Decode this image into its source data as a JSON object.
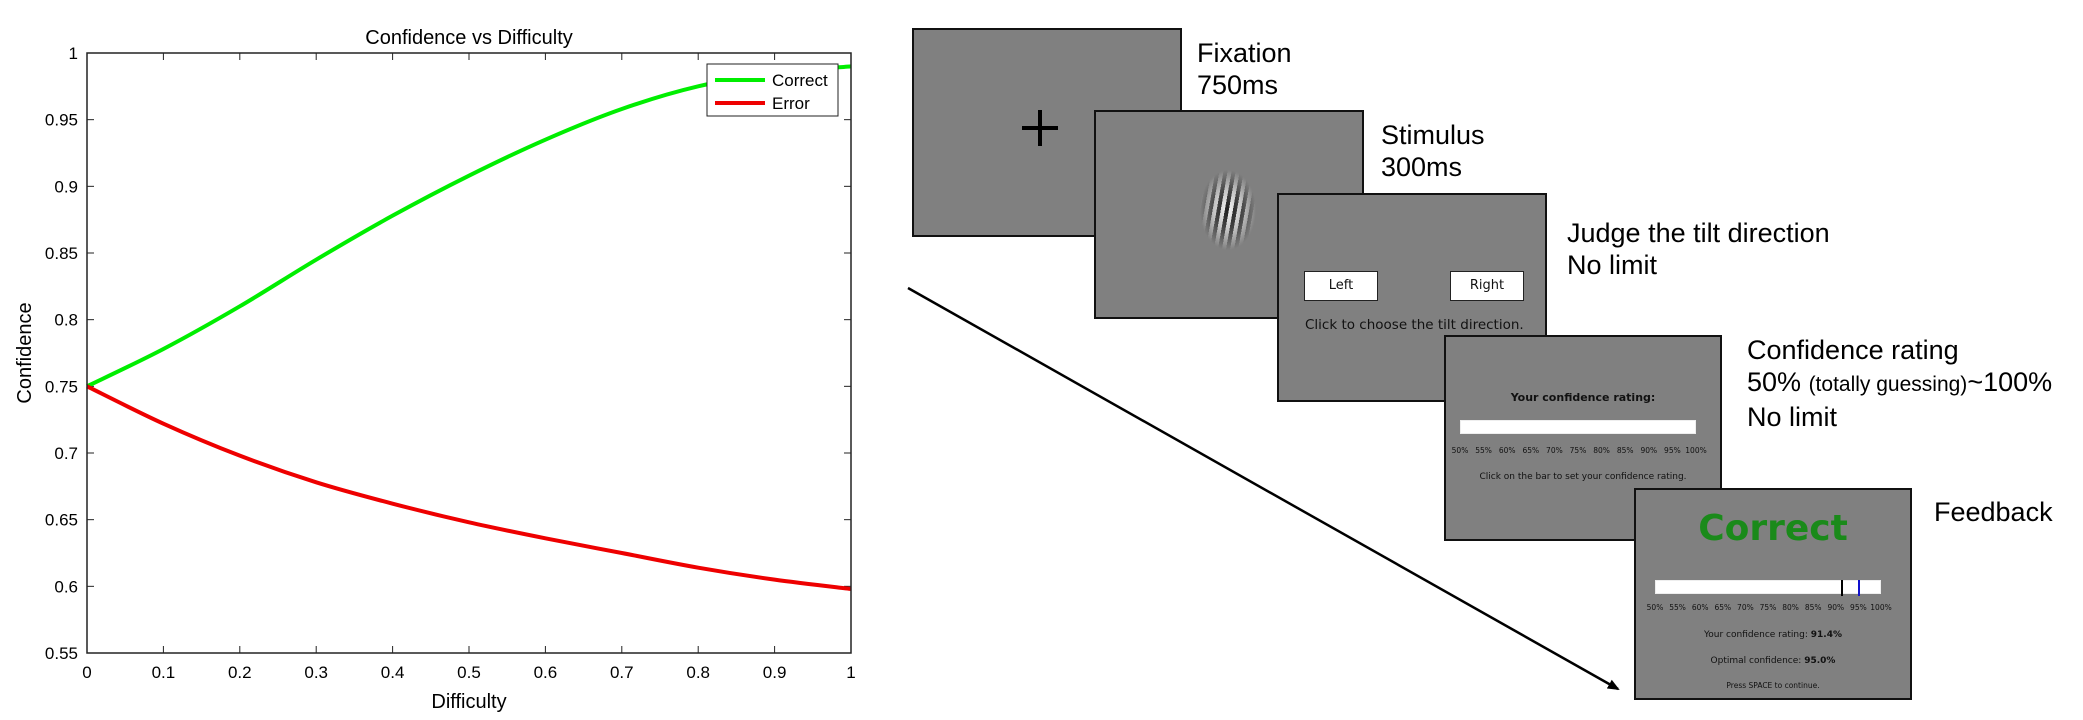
{
  "chart_data": {
    "type": "line",
    "title": "Confidence vs Difficulty",
    "xlabel": "Difficulty",
    "ylabel": "Confidence",
    "xlim": [
      0,
      1
    ],
    "ylim": [
      0.55,
      1
    ],
    "x_ticks": [
      0,
      0.1,
      0.2,
      0.3,
      0.4,
      0.5,
      0.6,
      0.7,
      0.8,
      0.9,
      1
    ],
    "y_ticks": [
      0.55,
      0.6,
      0.65,
      0.7,
      0.75,
      0.8,
      0.85,
      0.9,
      0.95,
      1
    ],
    "x_tick_labels": [
      "0",
      "0.1",
      "0.2",
      "0.3",
      "0.4",
      "0.5",
      "0.6",
      "0.7",
      "0.8",
      "0.9",
      "1"
    ],
    "y_tick_labels": [
      "0.55",
      "0.6",
      "0.65",
      "0.7",
      "0.75",
      "0.8",
      "0.85",
      "0.9",
      "0.95",
      "1"
    ],
    "grid": false,
    "legend_position": "top-right",
    "x": [
      0,
      0.1,
      0.2,
      0.3,
      0.4,
      0.5,
      0.6,
      0.7,
      0.8,
      0.9,
      1.0
    ],
    "series": [
      {
        "name": "Correct",
        "color": "#00ee00",
        "values": [
          0.75,
          0.778,
          0.81,
          0.845,
          0.878,
          0.908,
          0.935,
          0.958,
          0.975,
          0.985,
          0.99
        ]
      },
      {
        "name": "Error",
        "color": "#ee0000",
        "values": [
          0.75,
          0.722,
          0.698,
          0.678,
          0.662,
          0.648,
          0.636,
          0.625,
          0.614,
          0.605,
          0.598
        ]
      }
    ]
  },
  "task": {
    "fixation": {
      "name": "Fixation",
      "duration": "750ms"
    },
    "stimulus": {
      "name": "Stimulus",
      "duration": "300ms"
    },
    "judge": {
      "name": "Judge the tilt direction",
      "duration": "No limit",
      "left_button": "Left",
      "right_button": "Right",
      "instruction": "Click to choose the tilt direction."
    },
    "confidence": {
      "name": "Confidence rating",
      "range_start": "50%",
      "range_note": "(totally guessing)",
      "range_end": "~100%",
      "duration": "No limit",
      "prompt": "Your confidence rating:",
      "instruction": "Click on the bar to set your confidence rating."
    },
    "feedback": {
      "name": "Feedback",
      "result": "Correct",
      "your_rating_label": "Your confidence rating:",
      "your_rating_value": "91.4%",
      "optimal_label": "Optimal confidence:",
      "optimal_value": "95.0%",
      "continue_text": "Press SPACE to continue.",
      "your_rating_fraction": 0.914,
      "optimal_fraction": 0.95
    },
    "scale_labels": [
      "50%",
      "55%",
      "60%",
      "65%",
      "70%",
      "75%",
      "80%",
      "85%",
      "90%",
      "95%",
      "100%"
    ]
  }
}
